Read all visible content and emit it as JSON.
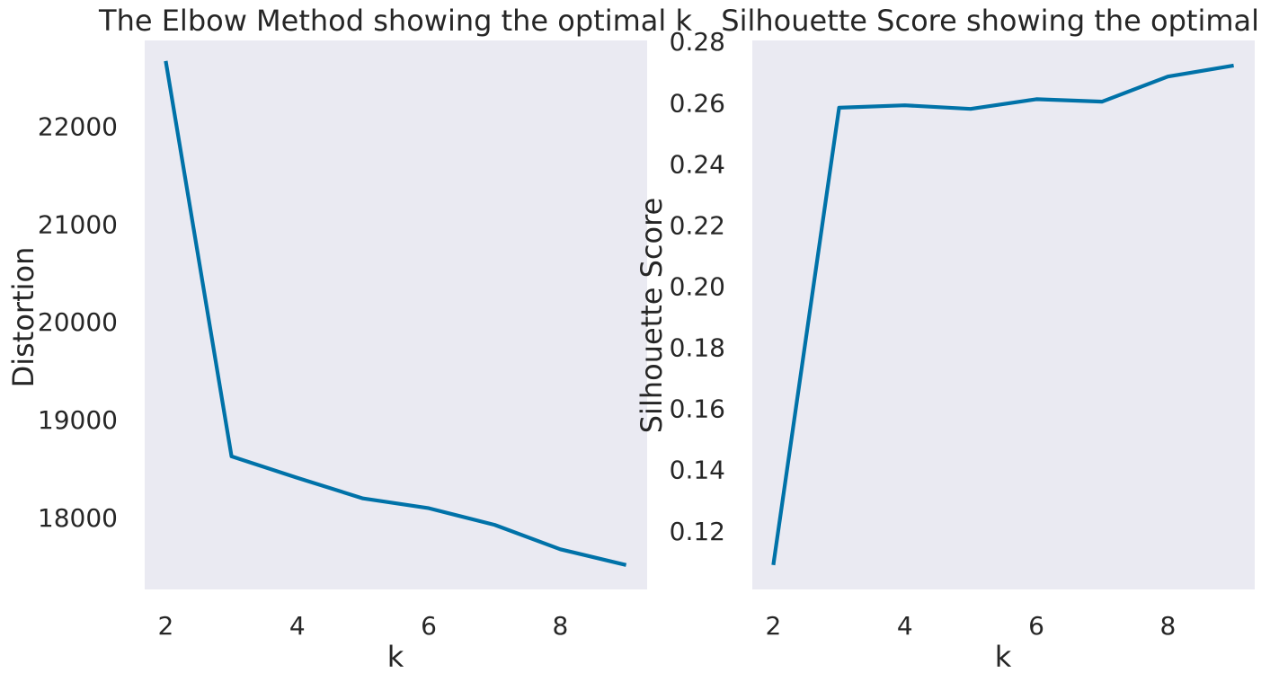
{
  "chart_data": [
    {
      "type": "line",
      "title": "The Elbow Method showing the optimal k",
      "xlabel": "k",
      "ylabel": "Distortion",
      "xlim": [
        1.68,
        9.32
      ],
      "ylim": [
        17270,
        22880
      ],
      "xticks": [
        2,
        4,
        6,
        8
      ],
      "yticks": [
        18000,
        19000,
        20000,
        21000,
        22000
      ],
      "grid": false,
      "series": [
        {
          "color": "#0072a8",
          "x": [
            2,
            3,
            4,
            5,
            6,
            7,
            8,
            9
          ],
          "y": [
            22670,
            18630,
            18410,
            18200,
            18100,
            17930,
            17680,
            17520
          ]
        }
      ]
    },
    {
      "type": "line",
      "title": "Silhouette Score showing the optimal k",
      "xlabel": "k",
      "ylabel": "Silhouette Score",
      "xlim": [
        1.68,
        9.32
      ],
      "ylim": [
        0.101,
        0.2805
      ],
      "xticks": [
        2,
        4,
        6,
        8
      ],
      "yticks": [
        0.12,
        0.14,
        0.16,
        0.18,
        0.2,
        0.22,
        0.24,
        0.26,
        0.28
      ],
      "ytick_labels": [
        "0.12",
        "0.14",
        "0.16",
        "0.18",
        "0.20",
        "0.22",
        "0.24",
        "0.26",
        "0.28"
      ],
      "grid": false,
      "series": [
        {
          "color": "#0072a8",
          "x": [
            2,
            3,
            4,
            5,
            6,
            7,
            8,
            9
          ],
          "y": [
            0.109,
            0.2585,
            0.2593,
            0.2581,
            0.2613,
            0.2605,
            0.2687,
            0.2723
          ]
        }
      ]
    }
  ]
}
